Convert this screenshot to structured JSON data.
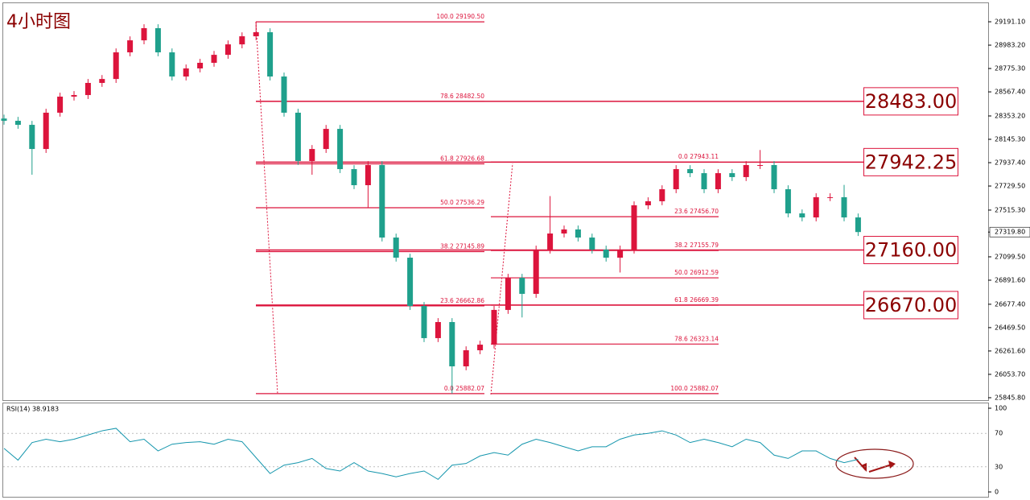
{
  "chart_data": [
    {
      "type": "candlestick",
      "title": "4小时图",
      "up_color": "#dc143c",
      "down_color": "#1fa08c",
      "level_color": "#dc143c",
      "ylim": [
        25824,
        29349
      ],
      "yticks": [
        {
          "value": 29191.1,
          "label": "29191.10"
        },
        {
          "value": 28983.2,
          "label": "28983.20"
        },
        {
          "value": 28775.3,
          "label": "28775.30"
        },
        {
          "value": 28567.4,
          "label": "28567.40"
        },
        {
          "value": 28353.2,
          "label": "28353.20"
        },
        {
          "value": 28145.3,
          "label": "28145.30"
        },
        {
          "value": 27937.4,
          "label": "27937.40"
        },
        {
          "value": 27729.5,
          "label": "27729.50"
        },
        {
          "value": 27515.3,
          "label": "27515.30"
        },
        {
          "value": 27099.5,
          "label": "27099.50"
        },
        {
          "value": 26891.6,
          "label": "26891.60"
        },
        {
          "value": 26677.4,
          "label": "26677.40"
        },
        {
          "value": 26469.5,
          "label": "26469.50"
        },
        {
          "value": 26261.6,
          "label": "26261.60"
        },
        {
          "value": 26053.7,
          "label": "26053.70"
        },
        {
          "value": 25845.8,
          "label": "25845.80"
        }
      ],
      "last_price": {
        "value": 27319.8,
        "label": "27319.80"
      },
      "open": [
        28330,
        28310,
        28274,
        28059,
        28382,
        28525,
        28539,
        28647,
        28682,
        28919,
        29026,
        29134,
        28919,
        28704,
        28776,
        28826,
        28897,
        28990,
        29062,
        29098,
        28704,
        28382,
        27952,
        28059,
        28238,
        27880,
        27737,
        27916,
        27271,
        27092,
        26662,
        26376,
        26519,
        26125,
        26268,
        26318,
        26627,
        26913,
        26770,
        27164,
        27307,
        27343,
        27271,
        27164,
        27092,
        27164,
        27558,
        27594,
        27701,
        27880,
        27844,
        27701,
        27844,
        27809,
        27916,
        27916,
        27701,
        27486,
        27450,
        27630,
        27630,
        27450
      ],
      "high": [
        28365,
        28345,
        28309,
        28417,
        28560,
        28574,
        28682,
        28717,
        28954,
        29061,
        29169,
        29169,
        28954,
        28811,
        28861,
        28932,
        29025,
        29097,
        29191,
        29133,
        28739,
        28417,
        28094,
        28273,
        28273,
        27915,
        27951,
        27951,
        27306,
        27127,
        26697,
        26554,
        26554,
        26303,
        26353,
        26662,
        26948,
        26948,
        27199,
        27640,
        27378,
        27378,
        27306,
        27199,
        27199,
        27593,
        27629,
        27736,
        27915,
        27915,
        27879,
        27879,
        27879,
        27951,
        28050,
        27951,
        27736,
        27521,
        27665,
        27665,
        27740,
        27485
      ],
      "low": [
        28275,
        28239,
        27830,
        28024,
        28347,
        28490,
        28504,
        28612,
        28647,
        28884,
        28991,
        28884,
        28669,
        28669,
        28741,
        28791,
        28862,
        28955,
        29027,
        28669,
        28347,
        27917,
        27830,
        28024,
        27845,
        27702,
        27540,
        27236,
        27057,
        26627,
        26341,
        26341,
        25882,
        26090,
        26233,
        26283,
        26592,
        26560,
        26735,
        27129,
        27272,
        27236,
        27129,
        27057,
        26960,
        27129,
        27523,
        27559,
        27666,
        27809,
        27666,
        27666,
        27774,
        27774,
        27881,
        27666,
        27451,
        27415,
        27415,
        27595,
        27415,
        27285
      ],
      "close": [
        28310,
        28274,
        28059,
        28382,
        28525,
        28539,
        28647,
        28682,
        28919,
        29026,
        29134,
        28919,
        28704,
        28776,
        28826,
        28897,
        28990,
        29062,
        29098,
        28704,
        28382,
        27952,
        28059,
        28238,
        27880,
        27737,
        27916,
        27271,
        27092,
        26662,
        26376,
        26519,
        26125,
        26268,
        26318,
        26627,
        26913,
        26770,
        27164,
        27307,
        27343,
        27271,
        27164,
        27092,
        27164,
        27558,
        27594,
        27701,
        27880,
        27844,
        27701,
        27844,
        27809,
        27916,
        27916,
        27701,
        27486,
        27450,
        27630,
        27630,
        27450,
        27320
      ],
      "fib_levels": [
        [
          {
            "value": 29190.5,
            "label": "100.0  29190.50"
          },
          {
            "value": 28482.5,
            "label": "78.6  28482.50"
          },
          {
            "value": 27926.68,
            "label": "61.8  27926.68"
          },
          {
            "value": 27536.29,
            "label": "50.0  27536.29"
          },
          {
            "value": 27145.89,
            "label": "38.2  27145.89"
          },
          {
            "value": 26662.86,
            "label": "23.6  26662.86"
          },
          {
            "value": 25882.07,
            "label": "0.0  25882.07"
          }
        ],
        [
          {
            "value": 27943.11,
            "label": "0.0  27943.11"
          },
          {
            "value": 27456.7,
            "label": "23.6  27456.70"
          },
          {
            "value": 27155.79,
            "label": "38.2  27155.79"
          },
          {
            "value": 26912.59,
            "label": "50.0  26912.59"
          },
          {
            "value": 26669.39,
            "label": "61.8  26669.39"
          },
          {
            "value": 26323.14,
            "label": "78.6  26323.14"
          },
          {
            "value": 25882.07,
            "label": "100.0  25882.07"
          }
        ]
      ],
      "key_levels": [
        {
          "value": 28483,
          "label": "28483.00"
        },
        {
          "value": 27942.25,
          "label": "27942.25"
        },
        {
          "value": 27160,
          "label": "27160.00"
        },
        {
          "value": 26670,
          "label": "26670.00"
        }
      ]
    },
    {
      "type": "line",
      "title": "RSI(14) 38.9183",
      "color": "#1596ad",
      "ylim": [
        0,
        100
      ],
      "yticks": [
        100,
        70,
        30,
        0
      ],
      "values": [
        52,
        38,
        59,
        63,
        60,
        63,
        68,
        73,
        76,
        60,
        63,
        49,
        57,
        59,
        60,
        57,
        63,
        60,
        41,
        22,
        32,
        35,
        40,
        28,
        25,
        35,
        25,
        22,
        18,
        22,
        25,
        15,
        32,
        34,
        43,
        47,
        44,
        57,
        63,
        59,
        54,
        49,
        54,
        54,
        63,
        68,
        70,
        73,
        68,
        59,
        63,
        59,
        54,
        63,
        59,
        44,
        40,
        49,
        49,
        40,
        35,
        38.92
      ]
    }
  ]
}
